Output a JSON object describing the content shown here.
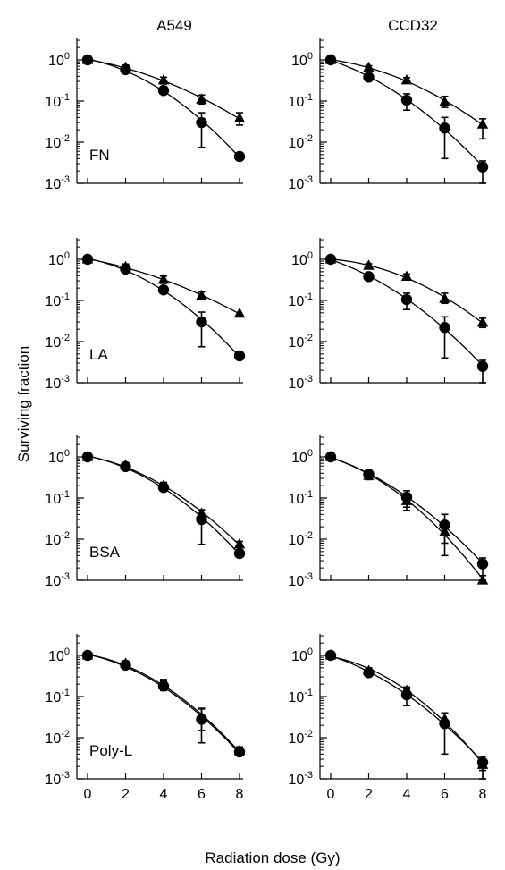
{
  "figure": {
    "column_titles": [
      "A549",
      "CCD32"
    ],
    "y_axis_label": "Surviving fraction",
    "x_axis_label": "Radiation dose (Gy)",
    "x_tick_labels": [
      "0",
      "2",
      "4",
      "6",
      "8"
    ],
    "y_tick_labels": [
      {
        "base": "10",
        "exp": "0"
      },
      {
        "base": "10",
        "exp": "-1"
      },
      {
        "base": "10",
        "exp": "-2"
      },
      {
        "base": "10",
        "exp": "-3"
      }
    ]
  },
  "chart_data": [
    {
      "type": "line",
      "row_label": "FN",
      "column": "A549",
      "x": [
        0,
        2,
        4,
        6,
        8
      ],
      "xlim": [
        0,
        8
      ],
      "ylim": [
        0.001,
        1
      ],
      "y_scale": "log",
      "series": [
        {
          "marker": "triangle",
          "values": [
            1.0,
            0.65,
            0.32,
            0.11,
            0.038
          ],
          "error_upper": [
            1.0,
            0.75,
            0.38,
            0.14,
            0.052
          ],
          "error_lower": [
            1.0,
            0.56,
            0.26,
            0.085,
            0.026
          ]
        },
        {
          "marker": "circle",
          "values": [
            1.0,
            0.58,
            0.18,
            0.03,
            0.0045
          ],
          "error_upper": [
            1.0,
            0.66,
            0.21,
            0.052,
            0.0052
          ],
          "error_lower": [
            1.0,
            0.5,
            0.15,
            0.0075,
            0.0039
          ]
        }
      ]
    },
    {
      "type": "line",
      "row_label": "",
      "column": "CCD32",
      "x": [
        0,
        2,
        4,
        6,
        8
      ],
      "xlim": [
        0,
        8
      ],
      "ylim": [
        0.001,
        1
      ],
      "y_scale": "log",
      "series": [
        {
          "marker": "triangle",
          "values": [
            1.0,
            0.65,
            0.32,
            0.095,
            0.027
          ],
          "error_upper": [
            1.0,
            0.72,
            0.37,
            0.13,
            0.037
          ],
          "error_lower": [
            1.0,
            0.58,
            0.27,
            0.07,
            0.012
          ]
        },
        {
          "marker": "circle",
          "values": [
            1.0,
            0.38,
            0.105,
            0.022,
            0.0025
          ],
          "error_upper": [
            1.0,
            0.46,
            0.15,
            0.04,
            0.0035
          ],
          "error_lower": [
            1.0,
            0.31,
            0.06,
            0.004,
            0.001
          ]
        }
      ]
    },
    {
      "type": "line",
      "row_label": "LA",
      "column": "A549",
      "x": [
        0,
        2,
        4,
        6,
        8
      ],
      "xlim": [
        0,
        8
      ],
      "ylim": [
        0.001,
        1
      ],
      "y_scale": "log",
      "series": [
        {
          "marker": "triangle",
          "values": [
            1.0,
            0.65,
            0.32,
            0.13,
            0.048
          ],
          "error_upper": [
            1.0,
            0.77,
            0.39,
            0.16,
            0.052
          ],
          "error_lower": [
            1.0,
            0.55,
            0.26,
            0.105,
            0.045
          ]
        },
        {
          "marker": "circle",
          "values": [
            1.0,
            0.58,
            0.18,
            0.03,
            0.0045
          ],
          "error_upper": [
            1.0,
            0.66,
            0.21,
            0.052,
            0.0052
          ],
          "error_lower": [
            1.0,
            0.5,
            0.15,
            0.0075,
            0.0039
          ]
        }
      ]
    },
    {
      "type": "line",
      "row_label": "",
      "column": "CCD32",
      "x": [
        0,
        2,
        4,
        6,
        8
      ],
      "xlim": [
        0,
        8
      ],
      "ylim": [
        0.001,
        1
      ],
      "y_scale": "log",
      "series": [
        {
          "marker": "triangle",
          "values": [
            1.0,
            0.7,
            0.38,
            0.11,
            0.029
          ],
          "error_upper": [
            1.0,
            0.78,
            0.44,
            0.15,
            0.037
          ],
          "error_lower": [
            1.0,
            0.62,
            0.32,
            0.085,
            0.022
          ]
        },
        {
          "marker": "circle",
          "values": [
            1.0,
            0.38,
            0.105,
            0.022,
            0.0025
          ],
          "error_upper": [
            1.0,
            0.46,
            0.15,
            0.04,
            0.0035
          ],
          "error_lower": [
            1.0,
            0.31,
            0.06,
            0.004,
            0.001
          ]
        }
      ]
    },
    {
      "type": "line",
      "row_label": "BSA",
      "column": "A549",
      "x": [
        0,
        2,
        4,
        6,
        8
      ],
      "xlim": [
        0,
        8
      ],
      "ylim": [
        0.001,
        1
      ],
      "y_scale": "log",
      "series": [
        {
          "marker": "triangle",
          "values": [
            1.0,
            0.62,
            0.2,
            0.042,
            0.0075
          ],
          "error_upper": [
            1.0,
            0.7,
            0.24,
            0.05,
            0.0088
          ],
          "error_lower": [
            1.0,
            0.55,
            0.17,
            0.035,
            0.0065
          ]
        },
        {
          "marker": "circle",
          "values": [
            1.0,
            0.58,
            0.18,
            0.03,
            0.0045
          ],
          "error_upper": [
            1.0,
            0.66,
            0.21,
            0.052,
            0.0052
          ],
          "error_lower": [
            1.0,
            0.5,
            0.15,
            0.0075,
            0.0039
          ]
        }
      ]
    },
    {
      "type": "line",
      "row_label": "",
      "column": "CCD32",
      "x": [
        0,
        2,
        4,
        6,
        8
      ],
      "xlim": [
        0,
        8
      ],
      "ylim": [
        0.001,
        1
      ],
      "y_scale": "log",
      "series": [
        {
          "marker": "triangle",
          "values": [
            1.0,
            0.35,
            0.085,
            0.015,
            0.001
          ],
          "error_upper": [
            1.0,
            0.42,
            0.11,
            0.025,
            0.0013
          ],
          "error_lower": [
            1.0,
            0.28,
            0.05,
            0.008,
            0.001
          ]
        },
        {
          "marker": "circle",
          "values": [
            1.0,
            0.38,
            0.105,
            0.022,
            0.0025
          ],
          "error_upper": [
            1.0,
            0.46,
            0.15,
            0.04,
            0.0035
          ],
          "error_lower": [
            1.0,
            0.31,
            0.06,
            0.004,
            0.001
          ]
        }
      ]
    },
    {
      "type": "line",
      "row_label": "Poly-L",
      "column": "A549",
      "x": [
        0,
        2,
        4,
        6,
        8
      ],
      "xlim": [
        0,
        8
      ],
      "ylim": [
        0.001,
        1
      ],
      "y_scale": "log",
      "series": [
        {
          "marker": "triangle",
          "values": [
            1.0,
            0.63,
            0.19,
            0.032,
            0.0048
          ],
          "error_upper": [
            1.0,
            0.72,
            0.26,
            0.05,
            0.006
          ],
          "error_lower": [
            1.0,
            0.55,
            0.14,
            0.015,
            0.0038
          ]
        },
        {
          "marker": "circle",
          "values": [
            1.0,
            0.58,
            0.18,
            0.028,
            0.0045
          ],
          "error_upper": [
            1.0,
            0.66,
            0.24,
            0.052,
            0.0055
          ],
          "error_lower": [
            1.0,
            0.5,
            0.14,
            0.0075,
            0.0037
          ]
        }
      ]
    },
    {
      "type": "line",
      "row_label": "",
      "column": "CCD32",
      "x": [
        0,
        2,
        4,
        6,
        8
      ],
      "xlim": [
        0,
        8
      ],
      "ylim": [
        0.001,
        1
      ],
      "y_scale": "log",
      "series": [
        {
          "marker": "triangle",
          "values": [
            1.0,
            0.42,
            0.14,
            0.028,
            0.0022
          ],
          "error_upper": [
            1.0,
            0.5,
            0.17,
            0.04,
            0.003
          ],
          "error_lower": [
            1.0,
            0.35,
            0.11,
            0.02,
            0.0016
          ]
        },
        {
          "marker": "circle",
          "values": [
            1.0,
            0.38,
            0.11,
            0.022,
            0.0025
          ],
          "error_upper": [
            1.0,
            0.46,
            0.15,
            0.04,
            0.0035
          ],
          "error_lower": [
            1.0,
            0.31,
            0.06,
            0.004,
            0.001
          ]
        }
      ]
    }
  ]
}
